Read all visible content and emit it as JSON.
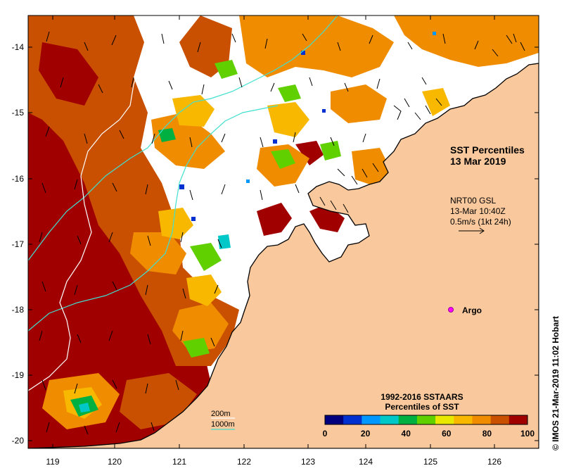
{
  "map": {
    "title_line1": "SST Percentiles",
    "title_line2": "13 Mar 2019",
    "current_source": "NRT00 GSL",
    "current_time": "13-Mar 10:40Z",
    "current_scale": "0.5m/s (1kt 24h)",
    "argo_label": "Argo",
    "credit": "© IMOS 21-Mar-2019 11:02 Hobart",
    "x_ticks": [
      "119",
      "120",
      "121",
      "122",
      "123",
      "124",
      "125",
      "126"
    ],
    "y_ticks": [
      "-14",
      "-15",
      "-16",
      "-17",
      "-18",
      "-19",
      "-20"
    ],
    "contour_legend": {
      "shallow": "200m",
      "deep": "1000m"
    },
    "land_color": "#f9c99d",
    "contour_color": "#40e0d0"
  },
  "colorbar": {
    "title_line1": "1992-2016 SSTAARS",
    "title_line2": "Percentiles of SST",
    "tick_labels": [
      "0",
      "20",
      "40",
      "60",
      "80",
      "100"
    ],
    "colors": [
      "#00007f",
      "#0030d0",
      "#0098ff",
      "#00c8c8",
      "#00b040",
      "#60d000",
      "#e8e800",
      "#f8b800",
      "#f08c00",
      "#c85000",
      "#a00000"
    ]
  }
}
